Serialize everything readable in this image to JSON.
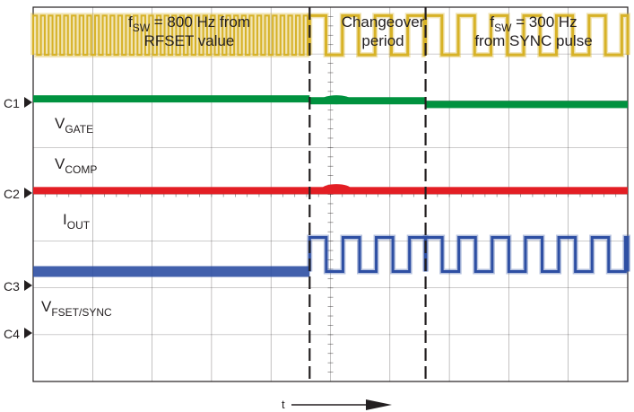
{
  "chart_data": {
    "type": "line",
    "title": "",
    "x_axis_label": "t",
    "regions": [
      {
        "name": "fsw_800",
        "line1_main": "f",
        "line1_sub": "SW",
        "line1_rest": " = 800 Hz from",
        "line2": "RFSET value"
      },
      {
        "name": "changeover",
        "line1": "Changeover",
        "line2": "period"
      },
      {
        "name": "fsw_300",
        "line1_main": "f",
        "line1_sub": "SW",
        "line1_rest": " = 300 Hz",
        "line2": "from SYNC pulse"
      }
    ],
    "channel_markers": [
      "C1",
      "C2",
      "C3",
      "C4"
    ],
    "grid": {
      "x_divisions": 10,
      "y_divisions": 8,
      "subdivisions": 5
    },
    "transition_markers_div": [
      4.65,
      6.6
    ],
    "series": [
      {
        "name": "V",
        "sub": "GATE",
        "color": "#d7b327",
        "kind": "square",
        "low_div": 1.02,
        "high_div": 0.18,
        "period_div": [
          0.13,
          0.55,
          0.55
        ]
      },
      {
        "name": "V",
        "sub": "COMP",
        "color": "#00923f",
        "kind": "dc",
        "level_div": [
          1.96,
          2.0,
          2.08
        ],
        "bump_div": 0.08
      },
      {
        "name": "I",
        "sub": "OUT",
        "color": "#e31e24",
        "kind": "dc",
        "level_div": [
          3.92,
          3.92,
          3.92
        ],
        "bump_div": 0.1
      },
      {
        "name": "V",
        "sub": "FSET/SYNC",
        "color": "#2e4fa3",
        "kind": "square",
        "low_div": 5.65,
        "high_div": 4.92,
        "period_div": [
          0,
          0.56,
          0.56
        ]
      }
    ]
  },
  "colors": {
    "grid": "#231f20",
    "dash": "#231f20",
    "background": "#ffffff"
  }
}
